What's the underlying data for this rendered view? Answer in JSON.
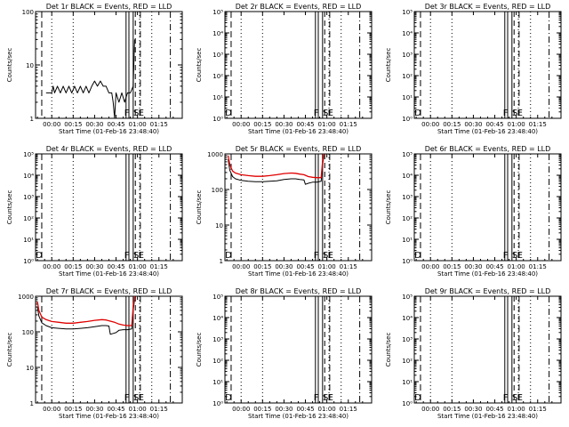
{
  "panel_titles": [
    "Det 1r BLACK = Events, RED = LLD",
    "Det 2r BLACK = Events, RED = LLD",
    "Det 3r BLACK = Events, RED = LLD",
    "Det 4r BLACK = Events, RED = LLD",
    "Det 5r BLACK = Events, RED = LLD",
    "Det 6r BLACK = Events, RED = LLD",
    "Det 7r BLACK = Events, RED = LLD",
    "Det 8r BLACK = Events, RED = LLD",
    "Det 9r BLACK = Events, RED = LLD"
  ],
  "xlabel": "Start Time (01-Feb-16 23:48:40)",
  "ylabel": "Counts/sec",
  "x_tick_labels": [
    "00:00",
    "00:15",
    "00:30",
    "00:45",
    "01:00",
    "01:15"
  ],
  "markers": {
    "F": "F",
    "S": "S",
    "E": "E",
    "D": "D"
  },
  "colors": {
    "events": "#000000",
    "lld": "#e00000"
  },
  "chart_data": [
    {
      "type": "line",
      "detector": "1r",
      "title": "Det 1r BLACK = Events, RED = LLD",
      "yscale": "log",
      "ylim": [
        1,
        100
      ],
      "y_tick_labels": [
        "100",
        "10",
        "1"
      ],
      "xlim_minutes": [
        -11.33,
        91.33
      ],
      "x_ticks_minutes": [
        0,
        15,
        30,
        45,
        60,
        75
      ],
      "series": [
        {
          "color": "black",
          "points": [
            [
              -4,
              3
            ],
            [
              0,
              3
            ],
            [
              1,
              4
            ],
            [
              2,
              3
            ],
            [
              4,
              4
            ],
            [
              6,
              3
            ],
            [
              8,
              4
            ],
            [
              10,
              3
            ],
            [
              12,
              4
            ],
            [
              14,
              3
            ],
            [
              16,
              4
            ],
            [
              18,
              3
            ],
            [
              20,
              4
            ],
            [
              22,
              3
            ],
            [
              24,
              4
            ],
            [
              26,
              3
            ],
            [
              28,
              4
            ],
            [
              30,
              5
            ],
            [
              32,
              4
            ],
            [
              34,
              5
            ],
            [
              36,
              4
            ],
            [
              38,
              4
            ],
            [
              40,
              3
            ],
            [
              42,
              3
            ],
            [
              43,
              2
            ],
            [
              44,
              1
            ],
            [
              45,
              3
            ],
            [
              47,
              2
            ],
            [
              49,
              3
            ],
            [
              51,
              2
            ],
            [
              53,
              3
            ],
            [
              55,
              3
            ],
            [
              57,
              4
            ],
            [
              58,
              30
            ]
          ]
        }
      ],
      "v_lines": {
        "F": [
          52,
          54
        ],
        "solid": 57,
        "S": 58.5,
        "E": 62
      },
      "shows_D": false
    },
    {
      "type": "line",
      "detector": "2r",
      "title": "Det 2r BLACK = Events, RED = LLD",
      "yscale": "log",
      "ylim": [
        1,
        100000
      ],
      "y_tick_labels": [
        "10⁵",
        "10⁴",
        "10³",
        "10²",
        "10¹",
        "10⁰"
      ],
      "xlim_minutes": [
        -11.33,
        91.33
      ],
      "x_ticks_minutes": [
        0,
        15,
        30,
        45,
        60,
        75
      ],
      "series": [],
      "v_lines": {
        "F": [
          52,
          54
        ],
        "solid": 57,
        "S": 58.5,
        "E": 62
      },
      "shows_D": true
    },
    {
      "type": "line",
      "detector": "3r",
      "title": "Det 3r BLACK = Events, RED = LLD",
      "yscale": "log",
      "ylim": [
        1,
        100000
      ],
      "y_tick_labels": [
        "10⁵",
        "10⁴",
        "10³",
        "10²",
        "10¹",
        "10⁰"
      ],
      "xlim_minutes": [
        -11.33,
        91.33
      ],
      "x_ticks_minutes": [
        0,
        15,
        30,
        45,
        60,
        75
      ],
      "series": [],
      "v_lines": {
        "F": [
          52,
          54
        ],
        "solid": 57,
        "S": 58.5,
        "E": 62
      },
      "shows_D": true
    },
    {
      "type": "line",
      "detector": "4r",
      "title": "Det 4r BLACK = Events, RED = LLD",
      "yscale": "log",
      "ylim": [
        1,
        100000
      ],
      "y_tick_labels": [
        "10⁵",
        "10⁴",
        "10³",
        "10²",
        "10¹",
        "10⁰"
      ],
      "xlim_minutes": [
        -11.33,
        91.33
      ],
      "x_ticks_minutes": [
        0,
        15,
        30,
        45,
        60,
        75
      ],
      "series": [],
      "v_lines": {
        "F": [
          52,
          54
        ],
        "solid": 57,
        "S": 58.5,
        "E": 62
      },
      "shows_D": true
    },
    {
      "type": "line",
      "detector": "5r",
      "title": "Det 5r BLACK = Events, RED = LLD",
      "yscale": "log",
      "ylim": [
        1,
        1000
      ],
      "y_tick_labels": [
        "1000",
        "100",
        "10",
        "1"
      ],
      "xlim_minutes": [
        -11.33,
        91.33
      ],
      "x_ticks_minutes": [
        0,
        15,
        30,
        45,
        60,
        75
      ],
      "series": [
        {
          "color": "black",
          "points": [
            [
              -9,
              700
            ],
            [
              -8,
              350
            ],
            [
              -6,
              230
            ],
            [
              -4,
              200
            ],
            [
              0,
              180
            ],
            [
              5,
              170
            ],
            [
              10,
              165
            ],
            [
              15,
              165
            ],
            [
              20,
              170
            ],
            [
              25,
              175
            ],
            [
              30,
              190
            ],
            [
              35,
              200
            ],
            [
              38,
              200
            ],
            [
              41,
              190
            ],
            [
              44,
              185
            ],
            [
              45,
              140
            ],
            [
              47,
              150
            ],
            [
              50,
              160
            ],
            [
              53,
              160
            ],
            [
              56,
              170
            ],
            [
              57,
              500
            ],
            [
              58,
              900
            ]
          ]
        },
        {
          "color": "red",
          "points": [
            [
              -9,
              900
            ],
            [
              -8,
              500
            ],
            [
              -6,
              330
            ],
            [
              -4,
              290
            ],
            [
              0,
              260
            ],
            [
              5,
              245
            ],
            [
              10,
              235
            ],
            [
              15,
              235
            ],
            [
              20,
              245
            ],
            [
              25,
              260
            ],
            [
              30,
              280
            ],
            [
              35,
              290
            ],
            [
              38,
              285
            ],
            [
              41,
              270
            ],
            [
              44,
              260
            ],
            [
              47,
              230
            ],
            [
              50,
              220
            ],
            [
              53,
              215
            ],
            [
              56,
              215
            ],
            [
              57,
              600
            ],
            [
              58,
              1000
            ]
          ]
        }
      ],
      "v_lines": {
        "F": [
          52,
          54
        ],
        "solid": 57,
        "S": 58.5,
        "E": 62
      },
      "shows_D": true
    },
    {
      "type": "line",
      "detector": "6r",
      "title": "Det 6r BLACK = Events, RED = LLD",
      "yscale": "log",
      "ylim": [
        1,
        100000
      ],
      "y_tick_labels": [
        "10⁵",
        "10⁴",
        "10³",
        "10²",
        "10¹",
        "10⁰"
      ],
      "xlim_minutes": [
        -11.33,
        91.33
      ],
      "x_ticks_minutes": [
        0,
        15,
        30,
        45,
        60,
        75
      ],
      "series": [],
      "v_lines": {
        "F": [
          52,
          54
        ],
        "solid": 57,
        "S": 58.5,
        "E": 62
      },
      "shows_D": true
    },
    {
      "type": "line",
      "detector": "7r",
      "title": "Det 7r BLACK = Events, RED = LLD",
      "yscale": "log",
      "ylim": [
        1,
        1000
      ],
      "y_tick_labels": [
        "1000",
        "100",
        "10",
        "1"
      ],
      "xlim_minutes": [
        -11.33,
        91.33
      ],
      "x_ticks_minutes": [
        0,
        15,
        30,
        45,
        60,
        75
      ],
      "series": [
        {
          "color": "black",
          "points": [
            [
              -10,
              500
            ],
            [
              -9,
              280
            ],
            [
              -7,
              180
            ],
            [
              -4,
              150
            ],
            [
              0,
              130
            ],
            [
              5,
              125
            ],
            [
              10,
              120
            ],
            [
              15,
              120
            ],
            [
              20,
              125
            ],
            [
              25,
              130
            ],
            [
              30,
              140
            ],
            [
              35,
              150
            ],
            [
              38,
              150
            ],
            [
              40,
              145
            ],
            [
              41,
              85
            ],
            [
              43,
              90
            ],
            [
              45,
              95
            ],
            [
              47,
              110
            ],
            [
              50,
              115
            ],
            [
              53,
              115
            ],
            [
              56,
              120
            ],
            [
              57,
              400
            ],
            [
              58,
              800
            ]
          ]
        },
        {
          "color": "red",
          "points": [
            [
              -10,
              700
            ],
            [
              -9,
              400
            ],
            [
              -7,
              260
            ],
            [
              -4,
              220
            ],
            [
              0,
              195
            ],
            [
              5,
              185
            ],
            [
              10,
              175
            ],
            [
              15,
              175
            ],
            [
              20,
              185
            ],
            [
              25,
              195
            ],
            [
              30,
              210
            ],
            [
              35,
              220
            ],
            [
              38,
              215
            ],
            [
              41,
              200
            ],
            [
              44,
              185
            ],
            [
              47,
              165
            ],
            [
              50,
              155
            ],
            [
              53,
              150
            ],
            [
              56,
              150
            ],
            [
              57,
              500
            ],
            [
              58,
              1000
            ]
          ]
        }
      ],
      "v_lines": {
        "F": [
          52,
          54
        ],
        "solid": 57,
        "S": 58.5,
        "E": 62
      },
      "shows_D": false
    },
    {
      "type": "line",
      "detector": "8r",
      "title": "Det 8r BLACK = Events, RED = LLD",
      "yscale": "log",
      "ylim": [
        1,
        100000
      ],
      "y_tick_labels": [
        "10⁵",
        "10⁴",
        "10³",
        "10²",
        "10¹",
        "10⁰"
      ],
      "xlim_minutes": [
        -11.33,
        91.33
      ],
      "x_ticks_minutes": [
        0,
        15,
        30,
        45,
        60,
        75
      ],
      "series": [],
      "v_lines": {
        "F": [
          52,
          54
        ],
        "solid": 57,
        "S": 58.5,
        "E": 62
      },
      "shows_D": true
    },
    {
      "type": "line",
      "detector": "9r",
      "title": "Det 9r BLACK = Events, RED = LLD",
      "yscale": "log",
      "ylim": [
        1,
        100000
      ],
      "y_tick_labels": [
        "10⁵",
        "10⁴",
        "10³",
        "10²",
        "10¹",
        "10⁰"
      ],
      "xlim_minutes": [
        -11.33,
        91.33
      ],
      "x_ticks_minutes": [
        0,
        15,
        30,
        45,
        60,
        75
      ],
      "series": [],
      "v_lines": {
        "F": [
          52,
          54
        ],
        "solid": 57,
        "S": 58.5,
        "E": 62
      },
      "shows_D": true
    }
  ]
}
